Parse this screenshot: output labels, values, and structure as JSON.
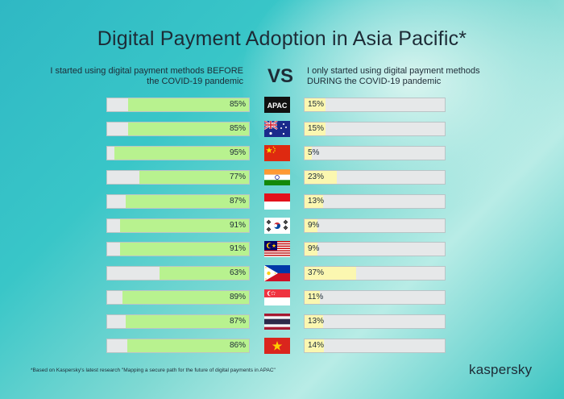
{
  "title": "Digital Payment Adoption in Asia Pacific*",
  "left_header": "I started using digital payment methods BEFORE the COVID-19 pandemic",
  "right_header": "I only started using digital payment methods DURING the COVID-19 pandemic",
  "vs_label": "VS",
  "footnote": "*Based on Kaspersky's latest research \"Mapping a secure path for the future of digital payments in APAC\"",
  "logo_text": "kaspersky",
  "colors": {
    "before_fill": "#b8f28f",
    "during_fill": "#fbf7b0",
    "bar_track": "#e6e8e9",
    "text": "#1d2b36"
  },
  "chart_data": {
    "type": "bar",
    "orientation": "horizontal-diverging",
    "xlim": [
      0,
      100
    ],
    "categories": [
      "APAC",
      "Australia",
      "China",
      "India",
      "Indonesia",
      "South Korea",
      "Malaysia",
      "Philippines",
      "Singapore",
      "Thailand",
      "Vietnam"
    ],
    "series": [
      {
        "name": "I started using digital payment methods BEFORE the COVID-19 pandemic",
        "values": [
          85,
          85,
          95,
          77,
          87,
          91,
          91,
          63,
          89,
          87,
          86
        ]
      },
      {
        "name": "I only started using digital payment methods DURING the COVID-19 pandemic",
        "values": [
          15,
          15,
          5,
          23,
          13,
          9,
          9,
          37,
          11,
          13,
          14
        ]
      }
    ],
    "rows": [
      {
        "flag": "apac-badge",
        "label": "APAC",
        "before": 85,
        "during": 15,
        "before_label": "85%",
        "during_label": "15%"
      },
      {
        "flag": "australia-flag-icon",
        "before": 85,
        "during": 15,
        "before_label": "85%",
        "during_label": "15%"
      },
      {
        "flag": "china-flag-icon",
        "before": 95,
        "during": 5,
        "before_label": "95%",
        "during_label": "5%"
      },
      {
        "flag": "india-flag-icon",
        "before": 77,
        "during": 23,
        "before_label": "77%",
        "during_label": "23%"
      },
      {
        "flag": "indonesia-flag-icon",
        "before": 87,
        "during": 13,
        "before_label": "87%",
        "during_label": "13%"
      },
      {
        "flag": "south-korea-flag-icon",
        "before": 91,
        "during": 9,
        "before_label": "91%",
        "during_label": "9%"
      },
      {
        "flag": "malaysia-flag-icon",
        "before": 91,
        "during": 9,
        "before_label": "91%",
        "during_label": "9%"
      },
      {
        "flag": "philippines-flag-icon",
        "before": 63,
        "during": 37,
        "before_label": "63%",
        "during_label": "37%"
      },
      {
        "flag": "singapore-flag-icon",
        "before": 89,
        "during": 11,
        "before_label": "89%",
        "during_label": "11%"
      },
      {
        "flag": "thailand-flag-icon",
        "before": 87,
        "during": 13,
        "before_label": "87%",
        "during_label": "13%"
      },
      {
        "flag": "vietnam-flag-icon",
        "before": 86,
        "during": 14,
        "before_label": "86%",
        "during_label": "14%"
      }
    ]
  }
}
